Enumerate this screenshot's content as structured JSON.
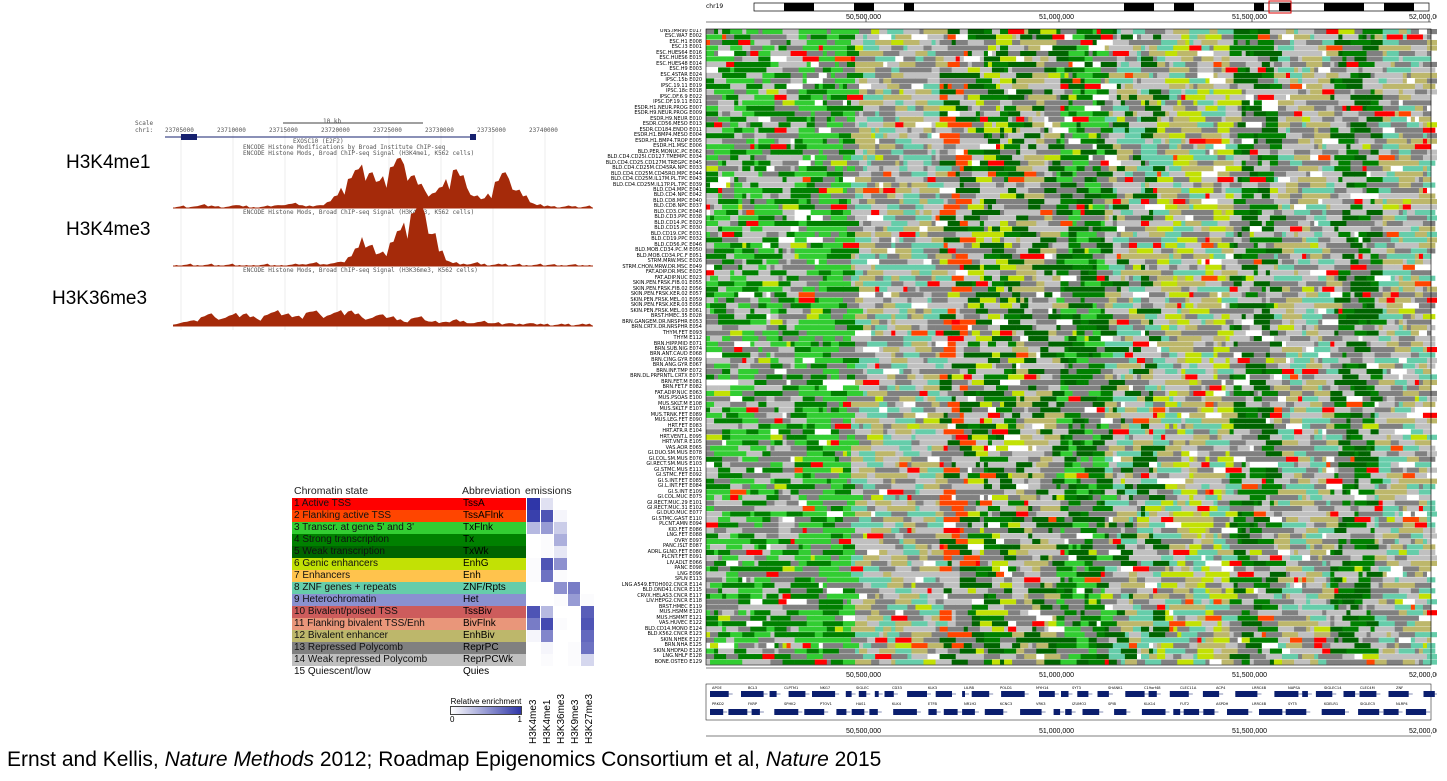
{
  "ucsc": {
    "scale_label": "Scale",
    "chr_label": "chr1:",
    "scale_value": "10 kb",
    "coords": [
      "23705000",
      "23710000",
      "23715000",
      "23720000",
      "23725000",
      "23730000",
      "23735000",
      "23740000"
    ],
    "gene_name": "EXOSC10 (E2F2)",
    "track_title": "ENCODE Histone Modifications by Broad Institute ChIP-seq",
    "track_sub1": "ENCODE Histone Mods, Broad ChIP-seq Signal (H3K4me1, K562 cells)",
    "track_sub2": "ENCODE Histone Mods, Broad ChIP-seq Signal (H3K4me3, K562 cells)",
    "track_sub3": "ENCODE Histone Mods, Broad ChIP-seq Signal (H3K36me3, K562 cells)",
    "signal_color": "#a52a0a",
    "tracks": [
      {
        "label": "H3K4me1",
        "shape": [
          0,
          1,
          0,
          1,
          2,
          1,
          1,
          0,
          1,
          2,
          1,
          0,
          0,
          1,
          1,
          2,
          2,
          3,
          2,
          1,
          1,
          2,
          4,
          8,
          14,
          20,
          26,
          30,
          24,
          18,
          22,
          28,
          34,
          30,
          22,
          16,
          12,
          10,
          14,
          20,
          26,
          22,
          14,
          8,
          6,
          10,
          18,
          24,
          20,
          12,
          8,
          4,
          2,
          1,
          1,
          0,
          1,
          1,
          0,
          1
        ]
      },
      {
        "label": "H3K4me3",
        "shape": [
          0,
          0,
          1,
          0,
          0,
          1,
          0,
          0,
          1,
          0,
          0,
          0,
          0,
          1,
          0,
          0,
          0,
          1,
          1,
          1,
          2,
          1,
          1,
          2,
          3,
          6,
          12,
          20,
          14,
          8,
          10,
          16,
          24,
          30,
          36,
          42,
          36,
          22,
          10,
          4,
          2,
          1,
          1,
          2,
          1,
          0,
          1,
          1,
          0,
          1,
          0,
          0,
          1,
          0,
          1,
          0,
          0,
          1,
          0,
          0
        ]
      },
      {
        "label": "H3K36me3",
        "shape": [
          1,
          2,
          3,
          4,
          6,
          8,
          6,
          5,
          7,
          9,
          8,
          6,
          5,
          7,
          9,
          11,
          8,
          6,
          7,
          9,
          10,
          8,
          7,
          9,
          11,
          10,
          8,
          6,
          5,
          7,
          8,
          6,
          4,
          3,
          5,
          6,
          4,
          3,
          2,
          3,
          4,
          3,
          2,
          2,
          3,
          2,
          2,
          1,
          2,
          1,
          1,
          2,
          1,
          1,
          0,
          1,
          1,
          0,
          1,
          1
        ]
      }
    ]
  },
  "legend": {
    "title_state": "Chromatin state",
    "title_abbr": "Abbreviation",
    "title_emissions": "emissions",
    "marks": [
      "H3K4me3",
      "H3K4me1",
      "H3K36me3",
      "H3K9me3",
      "H3K27me3"
    ],
    "colorbar_title": "Relative enrichment",
    "colorbar_min": "0",
    "colorbar_max": "1",
    "states": [
      {
        "name": "1 Active TSS",
        "abbr": "TssA",
        "color": "#ff0000",
        "heat": [
          1.0,
          0.15,
          0.0,
          0.0,
          0.0
        ]
      },
      {
        "name": "2 Flanking active TSS",
        "abbr": "TssAFlnk",
        "color": "#ff4500",
        "heat": [
          0.95,
          0.85,
          0.05,
          0.0,
          0.0
        ]
      },
      {
        "name": "3 Transcr. at gene 5' and 3'",
        "abbr": "TxFlnk",
        "color": "#32cd32",
        "heat": [
          0.35,
          0.5,
          0.25,
          0.0,
          0.0
        ]
      },
      {
        "name": "4 Strong transcription",
        "abbr": "Tx",
        "color": "#008000",
        "heat": [
          0.0,
          0.02,
          0.4,
          0.0,
          0.0
        ]
      },
      {
        "name": "5 Weak transcription",
        "abbr": "TxWk",
        "color": "#006400",
        "heat": [
          0.0,
          0.02,
          0.12,
          0.0,
          0.0
        ]
      },
      {
        "name": "6 Genic enhancers",
        "abbr": "EnhG",
        "color": "#c2e105",
        "heat": [
          0.02,
          0.85,
          0.55,
          0.0,
          0.0
        ]
      },
      {
        "name": "7 Enhancers",
        "abbr": "Enh",
        "color": "#ffc34d",
        "heat": [
          0.02,
          0.7,
          0.02,
          0.0,
          0.0
        ]
      },
      {
        "name": "8 ZNF genes + repeats",
        "abbr": "ZNF/Rpts",
        "color": "#66cdaa",
        "heat": [
          0.0,
          0.0,
          0.55,
          0.65,
          0.0
        ]
      },
      {
        "name": "9 Heterochromatin",
        "abbr": "Het",
        "color": "#8a91d0",
        "heat": [
          0.0,
          0.0,
          0.02,
          0.5,
          0.02
        ]
      },
      {
        "name": "10 Bivalent/poised TSS",
        "abbr": "TssBiv",
        "color": "#cd5c5c",
        "heat": [
          0.85,
          0.35,
          0.0,
          0.0,
          0.8
        ]
      },
      {
        "name": "11 Flanking bivalent TSS/Enh",
        "abbr": "BivFlnk",
        "color": "#e9967a",
        "heat": [
          0.65,
          0.9,
          0.02,
          0.0,
          0.85
        ]
      },
      {
        "name": "12 Bivalent enhancer",
        "abbr": "EnhBiv",
        "color": "#bdb76b",
        "heat": [
          0.05,
          0.6,
          0.0,
          0.0,
          0.75
        ]
      },
      {
        "name": "13 Repressed Polycomb",
        "abbr": "ReprPC",
        "color": "#808080",
        "heat": [
          0.0,
          0.05,
          0.0,
          0.02,
          0.7
        ]
      },
      {
        "name": "14 Weak repressed Polycomb",
        "abbr": "ReprPCWk",
        "color": "#c0c0c0",
        "heat": [
          0.0,
          0.02,
          0.0,
          0.02,
          0.2
        ]
      },
      {
        "name": "15 Quiescent/low",
        "abbr": "Quies",
        "color": "#ffffff",
        "heat": [
          0.0,
          0.0,
          0.0,
          0.0,
          0.0
        ]
      }
    ]
  },
  "browser": {
    "chrom_label": "chr19",
    "axis_ticks": [
      "50,500,000",
      "51,000,000",
      "51,500,000",
      "52,000,000"
    ],
    "genes_plus_label": "Genes(+)",
    "genes_minus_label": "Genes(-)",
    "sample_labels": [
      "UNS.IMR90 E017",
      "ESC.WA7 E002",
      "ESC.H1 E008",
      "ESC.I3 E001",
      "ESC.HUES64 E016",
      "ESC.HUES6 E015",
      "ESC.HUES48 E014",
      "ESC.H9 E003",
      "ESC.4STAR E024",
      "IPSC.15b E020",
      "IPSC.19.11 E019",
      "IPSC.18c E018",
      "IPSC.DF.6.9 E022",
      "IPSC.DF.19.11 E021",
      "ESDR.H1.NEUR.PROG E007",
      "ESDR.H9.NEUR.PROG E009",
      "ESDR.H9.NEUR E010",
      "ESDR.CD56.MESO E013",
      "ESDR.CD184.ENDO E011",
      "ESDR.H1.BMP4.MESO E004",
      "ESDR.H1.BMP4.TROP E005",
      "ESDR.H1.MSC E006",
      "BLD.PER.MONUC.PC E062",
      "BLD.CD4.CD25I.CD127.TMEMPC E034",
      "BLD.CD4.CD25.CD127M.TREGPC E045",
      "BLD.CD4.CD25M.CD45RA.NPC E033",
      "BLD.CD4.CD25M.CD45RO.MPC E044",
      "BLD.CD4.CD25M.IL17M.PL.TPC E043",
      "BLD.CD4.CD25M.IL17P.PL.TPC E039",
      "BLD.CD4.MPC E041",
      "BLD.CD4.NPC E042",
      "BLD.CD8.MPC E040",
      "BLD.CD8.NPC E037",
      "BLD.CD3.CPC E048",
      "BLD.CD3.PPC E038",
      "BLD.CD14.PC E029",
      "BLD.CD15.PC E030",
      "BLD.CD19.CPC E031",
      "BLD.CD19.PPC E032",
      "BLD.CD56.PC E046",
      "BLD.MOB.CD34.PC.M E050",
      "BLD.MOB.CD34.PC.F E051",
      "STRM.MRW.MSC E026",
      "STRM.CHON.MRW.DR.MSC E049",
      "FAT.ADIP.DR.MSC E025",
      "FAT.ADIP.NUC E023",
      "SKIN.PEN.FRSK.FIB.01 E055",
      "SKIN.PEN.FRSK.FIB.02 E056",
      "SKIN.PEN.FRSK.KER.02 E057",
      "SKIN.PEN.FRSK.MEL.01 E059",
      "SKIN.PEN.FRSK.KER.03 E058",
      "SKIN.PEN.FRSK.MEL.03 E061",
      "BRST.HMEC.35 E028",
      "BRN.GANGEM.DR.NRSPHR E053",
      "BRN.CRTX.DR.NRSPHR E054",
      "THYM.FET E093",
      "THYM E112",
      "BRN.HIPP.MID E071",
      "BRN.SUB.NIG E074",
      "BRN.ANT.CAUD E068",
      "BRN.CING.GYR E069",
      "BRN.ANG.GYR E067",
      "BRN.INF.TMP E072",
      "BRN.DL.PRFRNTL.CRTX E073",
      "BRN.FET.M E081",
      "BRN.FET.F E082",
      "FAT.ADIP.NUC E063",
      "MUS.PSOAS E100",
      "MUS.SKLT.M E108",
      "MUS.SKLT.F E107",
      "MUS.TRNK.FET E089",
      "MUS.LEG.FET E090",
      "HRT.FET E083",
      "HRT.ATR.R E104",
      "HRT.VENT.L E095",
      "HRT.VNT.R E105",
      "VAS.AOR E065",
      "GI.DUO.SM.MUS E078",
      "GI.COL.SM.MUS E076",
      "GI.RECT.SM.MUS E103",
      "GI.STMC.MUS E111",
      "GI.STMC.FET E092",
      "GI.S.INT.FET E085",
      "GI.L.INT.FET E084",
      "GI.S.INT E109",
      "GI.COL.MUC E075",
      "GI.RECT.MUC.29 E101",
      "GI.RECT.MUC.31 E102",
      "GI.DUO.MUC E077",
      "GI.STMC.GAST E110",
      "PLCNT.AMN E094",
      "KID.FET E086",
      "LNG.FET E088",
      "OVRY E097",
      "PANC.ISLT E087",
      "ADRL.GLND.FET E080",
      "PLCNT.FET E091",
      "LIV.ADLT E066",
      "PANC E098",
      "LNG E096",
      "SPLN E113",
      "LNG.A549.ETOH002.CNCR E114",
      "BLD.DND41.CNCR E115",
      "CRVX.HELAS3.CNCR E117",
      "LIV.HEPG2.CNCR E118",
      "BRST.HMEC E119",
      "MUS.HSMM E120",
      "MUS.HSMMT E121",
      "VAS.HUVEC E122",
      "BLD.CD14.MONO E124",
      "BLD.K562.CNCR E123",
      "SKIN.NHEK E127",
      "BRN.NHA E125",
      "SKIN.NHDFAD E126",
      "LNG.NHLF E128",
      "BONE.OSTEO E129"
    ],
    "state_colors": [
      "#ff0000",
      "#ff4500",
      "#32cd32",
      "#008000",
      "#006400",
      "#c2e105",
      "#ffff00",
      "#66cdaa",
      "#8a91d0",
      "#cd5c5c",
      "#e9967a",
      "#bdb76b",
      "#808080",
      "#c0c0c0",
      "#ffffff"
    ],
    "gene_names_top": [
      "APOE",
      "BCL3",
      "CLPTM1",
      "NKG7",
      "SIGLEC",
      "CD33",
      "KLK3",
      "LILRB",
      "POLD1",
      "MYH14",
      "SYT3",
      "SHANK1",
      "C19orf48",
      "CLEC11A",
      "ACP4",
      "LRRC4B",
      "NAPSA",
      "SIGLEC14",
      "CLEC4M",
      "ZNF"
    ],
    "gene_names_bottom": [
      "PRKD2",
      "FKRP",
      "SPHK2",
      "PTOV1",
      "HAS1",
      "KLK4",
      "ETFB",
      "NR1H2",
      "KCNC3",
      "VRK3",
      "IZUMO2",
      "SPIB",
      "KLK14",
      "FUT2",
      "ASPDH",
      "LRRC4B",
      "SYT5",
      "KDELR1",
      "SIGLEC5",
      "NLRP4"
    ]
  },
  "caption": {
    "part1": "Ernst and Kellis, ",
    "journal1": "Nature Methods",
    "part2": " 2012; Roadmap Epigenomics Consortium et al, ",
    "journal2": "Nature",
    "part3": " 2015"
  }
}
